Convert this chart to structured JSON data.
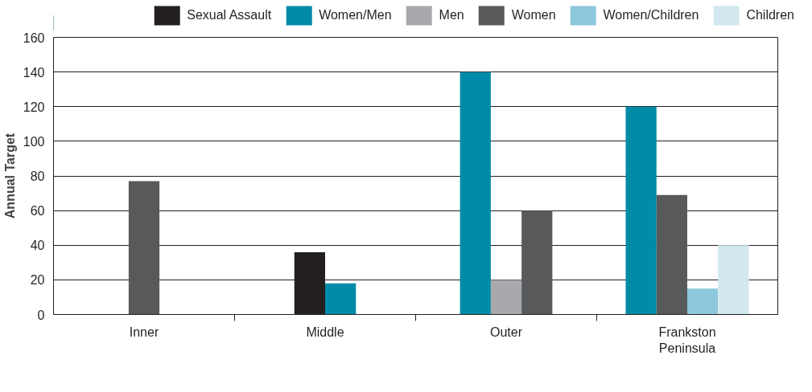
{
  "chart_data": {
    "type": "bar",
    "ylabel": "Annual Target",
    "categories": [
      "Inner",
      "Middle",
      "Outer",
      "Frankston\nPeninsula"
    ],
    "series": [
      {
        "name": "Sexual Assault",
        "color": "#231f20",
        "values": [
          null,
          36,
          null,
          null
        ]
      },
      {
        "name": "Women/Men",
        "color": "#008ba8",
        "values": [
          null,
          18,
          140,
          120
        ]
      },
      {
        "name": "Men",
        "color": "#a7a9ac",
        "values": [
          null,
          null,
          20,
          null
        ]
      },
      {
        "name": "Women",
        "color": "#58595b",
        "values": [
          77,
          null,
          60,
          69
        ]
      },
      {
        "name": "Women/Children",
        "color": "#8dc8dc",
        "values": [
          null,
          null,
          null,
          15
        ]
      },
      {
        "name": "Children",
        "color": "#d2e8ef",
        "values": [
          null,
          null,
          null,
          40
        ]
      }
    ],
    "ylim": [
      0,
      160
    ],
    "yticks": [
      0,
      20,
      40,
      60,
      80,
      100,
      120,
      140,
      160
    ],
    "grid": "y",
    "legend": "top"
  }
}
